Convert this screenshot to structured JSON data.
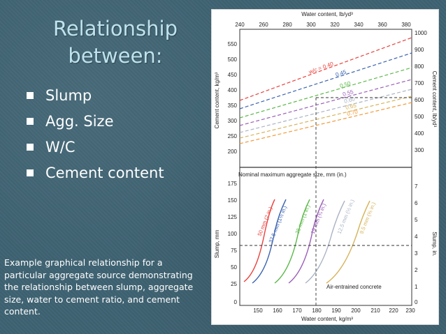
{
  "slide": {
    "title_line1": "Relationship",
    "title_line2": "between:",
    "bullets": [
      "Slump",
      "Agg. Size",
      "W/C",
      "Cement content"
    ],
    "caption": "Example graphical relationship for a particular aggregate source demonstrating the relationship between slump, aggregate size, water to cement ratio, and cement content."
  },
  "colors": {
    "background": "#3e6272",
    "title": "#bfe3ee"
  },
  "figure": {
    "top_axis_label": "Water content, lb/yd³",
    "top_axis_ticks": [
      "240",
      "260",
      "280",
      "300",
      "320",
      "340",
      "360",
      "380"
    ],
    "left_upper_axis_label": "Cement content, kg/m³",
    "left_upper_ticks": [
      "550",
      "500",
      "450",
      "400",
      "350",
      "300",
      "250",
      "200"
    ],
    "right_upper_axis_label": "Cement content, lb/yd³",
    "right_upper_ticks": [
      "1000",
      "900",
      "800",
      "700",
      "600",
      "500",
      "400",
      "300"
    ],
    "section_label": "Nominal maximum aggregate size, mm (in.)",
    "left_lower_axis_label": "Slump, mm",
    "left_lower_ticks": [
      "175",
      "150",
      "125",
      "100",
      "75",
      "50",
      "25",
      "0"
    ],
    "right_lower_axis_label": "Slump, in.",
    "right_lower_ticks": [
      "7",
      "6",
      "5",
      "4",
      "3",
      "2",
      "1",
      "0"
    ],
    "bottom_axis_label": "Water content, kg/m³",
    "bottom_axis_ticks": [
      "150",
      "160",
      "170",
      "180",
      "190",
      "200",
      "210",
      "220",
      "230"
    ],
    "concrete_type": "Air-entrained concrete",
    "wc_lines": [
      {
        "label": "w/c = 0.40",
        "color": "#e8413c"
      },
      {
        "label": "0.45",
        "color": "#3b63b0"
      },
      {
        "label": "0.50",
        "color": "#5cb84a"
      },
      {
        "label": "0.55",
        "color": "#9a5fb8"
      },
      {
        "label": "0.60",
        "color": "#aab4c4"
      },
      {
        "label": "0.65",
        "color": "#d6b35a"
      },
      {
        "label": "0.70",
        "color": "#f09a3a"
      }
    ],
    "slump_curves": [
      {
        "label": "50 mm (2 in.)",
        "color": "#e8413c"
      },
      {
        "label": "37.5 mm (1½ in.)",
        "color": "#3b63b0"
      },
      {
        "label": "25 mm (1 in.)",
        "color": "#5cb84a"
      },
      {
        "label": "19 mm (¾ in.)",
        "color": "#9a5fb8"
      },
      {
        "label": "12.5 mm (½ in.)",
        "color": "#aab4c4"
      },
      {
        "label": "9.5 mm (⅜ in.)",
        "color": "#d6b35a"
      }
    ]
  }
}
